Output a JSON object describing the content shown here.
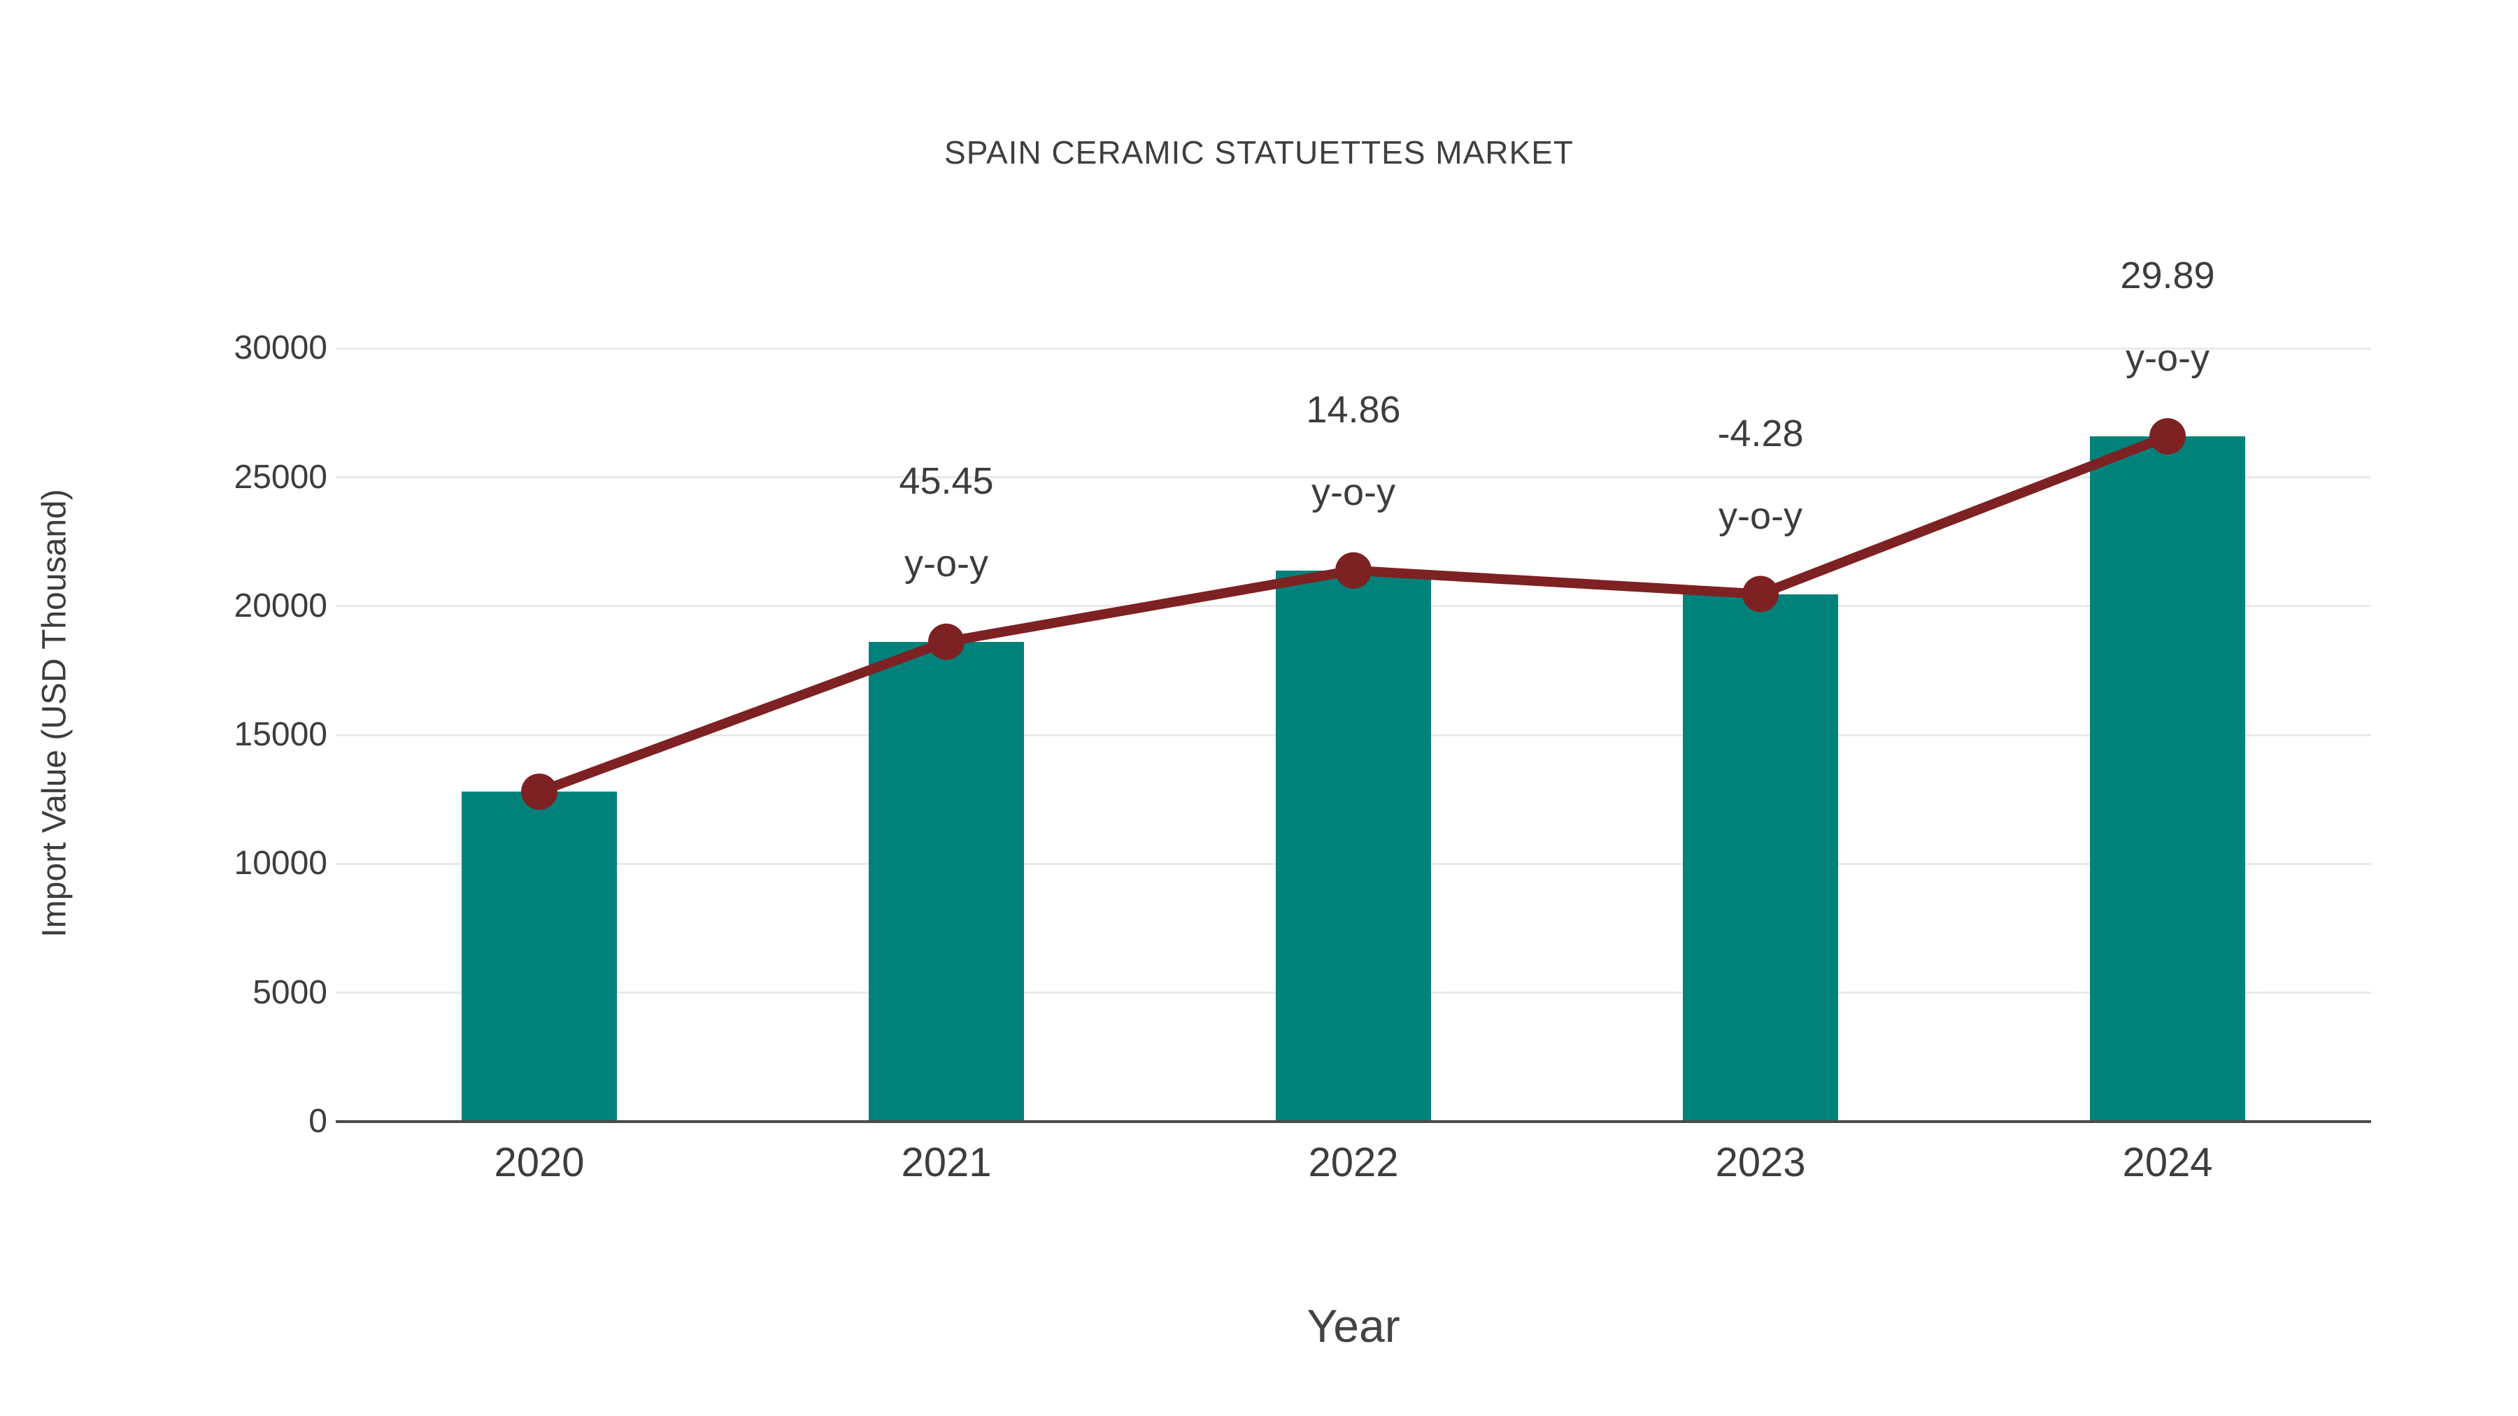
{
  "title": "SPAIN CERAMIC STATUETTES MARKET",
  "chart_data": {
    "type": "bar",
    "title": "SPAIN CERAMIC STATUETTES MARKET",
    "xlabel": "Year",
    "ylabel": "Import Value (USD Thousand)",
    "categories": [
      "2020",
      "2021",
      "2022",
      "2023",
      "2024"
    ],
    "series": [
      {
        "name": "Import Value (USD Thousand)",
        "type": "bar",
        "color": "#00827b",
        "values": [
          12800,
          18618,
          21384,
          20469,
          26587
        ]
      },
      {
        "name": "Import Value trend",
        "type": "line",
        "color": "#7e2123",
        "values": [
          12800,
          18618,
          21384,
          20469,
          26587
        ]
      }
    ],
    "annotations": [
      {
        "category": "2021",
        "lines": [
          "45.45",
          "y-o-y"
        ]
      },
      {
        "category": "2022",
        "lines": [
          "14.86",
          "y-o-y"
        ]
      },
      {
        "category": "2023",
        "lines": [
          "-4.28",
          "y-o-y"
        ]
      },
      {
        "category": "2024",
        "lines": [
          "29.89",
          "y-o-y"
        ]
      }
    ],
    "yticks": [
      0,
      5000,
      10000,
      15000,
      20000,
      25000,
      30000
    ],
    "ylim": [
      0,
      30000
    ],
    "grid": true,
    "legend": "none",
    "colors": {
      "bar": "#00827b",
      "line": "#7e2123",
      "gridline": "#e9e9e9",
      "axis": "#4a4a4a",
      "text": "#3d3d3d"
    }
  }
}
